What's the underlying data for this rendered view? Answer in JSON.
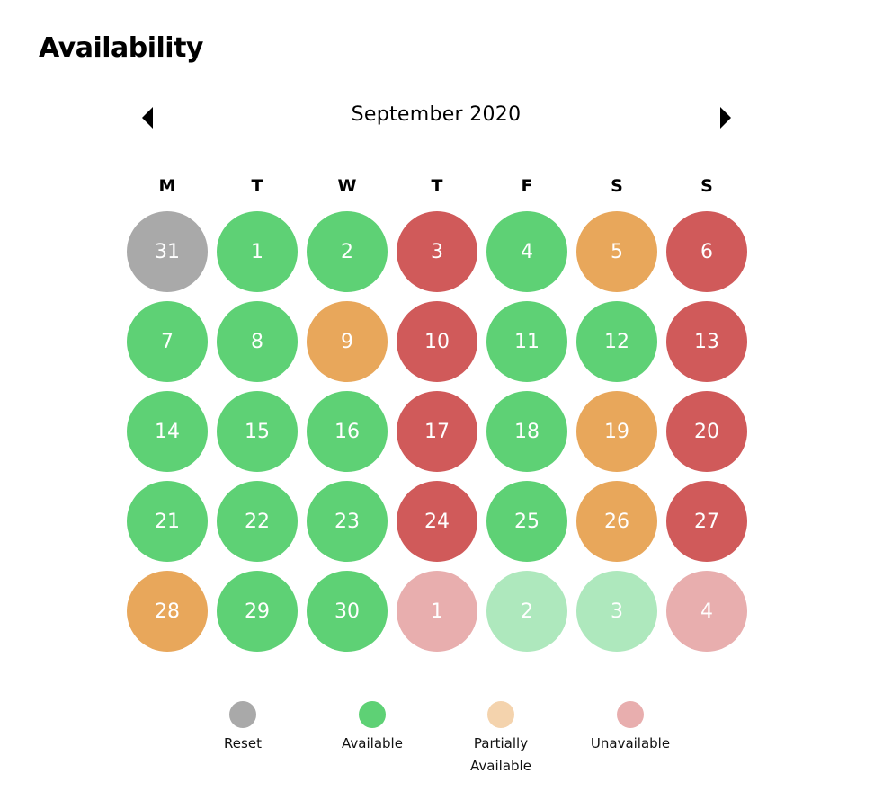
{
  "header": {
    "title": "Availability"
  },
  "calendar": {
    "month_label": "September 2020",
    "prev_label": "Previous month",
    "next_label": "Next month",
    "weekdays": [
      "M",
      "T",
      "W",
      "T",
      "F",
      "S",
      "S"
    ],
    "colors": {
      "reset": "#a9a9a9",
      "available": "#5ed175",
      "partial": "#e8a75b",
      "unavailable": "#d05a5a",
      "available_faded": "#aee8bd",
      "unavailable_faded": "#e8aeae",
      "legend_partial": "#f4d3ad",
      "legend_unavailable": "#e8aeae"
    },
    "weeks": [
      [
        {
          "day": "31",
          "status": "reset"
        },
        {
          "day": "1",
          "status": "available"
        },
        {
          "day": "2",
          "status": "available"
        },
        {
          "day": "3",
          "status": "unavailable"
        },
        {
          "day": "4",
          "status": "available"
        },
        {
          "day": "5",
          "status": "partial"
        },
        {
          "day": "6",
          "status": "unavailable"
        }
      ],
      [
        {
          "day": "7",
          "status": "available"
        },
        {
          "day": "8",
          "status": "available"
        },
        {
          "day": "9",
          "status": "partial"
        },
        {
          "day": "10",
          "status": "unavailable"
        },
        {
          "day": "11",
          "status": "available"
        },
        {
          "day": "12",
          "status": "available"
        },
        {
          "day": "13",
          "status": "unavailable"
        }
      ],
      [
        {
          "day": "14",
          "status": "available"
        },
        {
          "day": "15",
          "status": "available"
        },
        {
          "day": "16",
          "status": "available"
        },
        {
          "day": "17",
          "status": "unavailable"
        },
        {
          "day": "18",
          "status": "available"
        },
        {
          "day": "19",
          "status": "partial"
        },
        {
          "day": "20",
          "status": "unavailable"
        }
      ],
      [
        {
          "day": "21",
          "status": "available"
        },
        {
          "day": "22",
          "status": "available"
        },
        {
          "day": "23",
          "status": "available"
        },
        {
          "day": "24",
          "status": "unavailable"
        },
        {
          "day": "25",
          "status": "available"
        },
        {
          "day": "26",
          "status": "partial"
        },
        {
          "day": "27",
          "status": "unavailable"
        }
      ],
      [
        {
          "day": "28",
          "status": "partial"
        },
        {
          "day": "29",
          "status": "available"
        },
        {
          "day": "30",
          "status": "available"
        },
        {
          "day": "1",
          "status": "unavailable_faded"
        },
        {
          "day": "2",
          "status": "available_faded"
        },
        {
          "day": "3",
          "status": "available_faded"
        },
        {
          "day": "4",
          "status": "unavailable_faded"
        }
      ]
    ]
  },
  "legend": {
    "items": [
      {
        "label": "Reset",
        "color": "#a9a9a9"
      },
      {
        "label": "Available",
        "color": "#5ed175"
      },
      {
        "label": "Partially Available",
        "color": "#f4d3ad"
      },
      {
        "label": "Unavailable",
        "color": "#e8aeae"
      }
    ]
  }
}
